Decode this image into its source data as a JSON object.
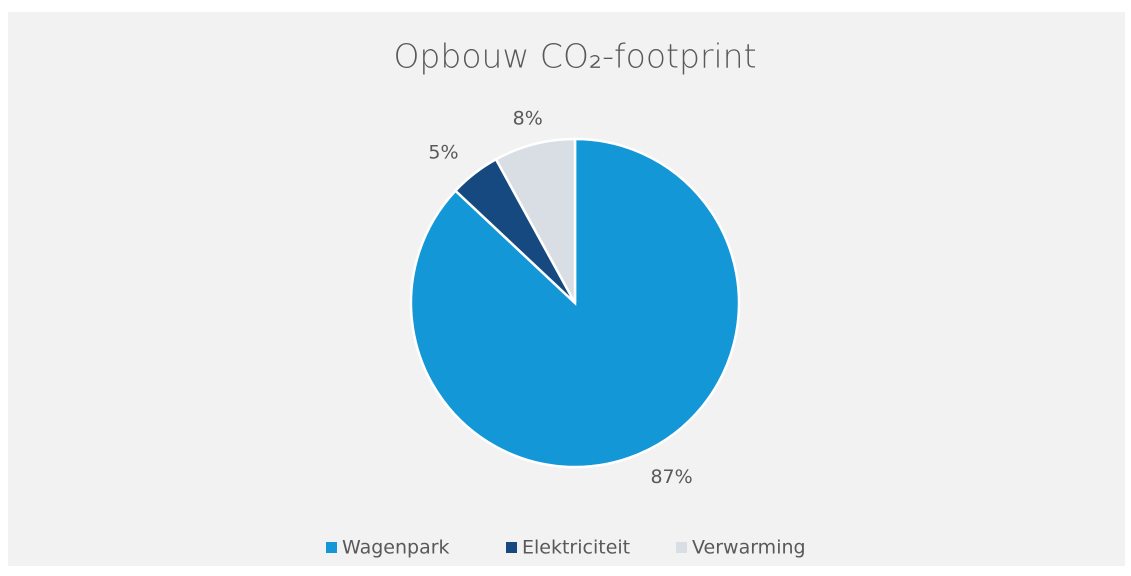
{
  "chart_data": {
    "type": "pie",
    "title": "Opbouw CO₂-footprint",
    "categories": [
      "Wagenpark",
      "Elektriciteit",
      "Verwarming"
    ],
    "values": [
      87,
      5,
      8
    ],
    "value_labels": [
      "87%",
      "5%",
      "8%"
    ],
    "colors": [
      "#1497d6",
      "#15497f",
      "#d9dee5"
    ],
    "legend": "bottom"
  }
}
